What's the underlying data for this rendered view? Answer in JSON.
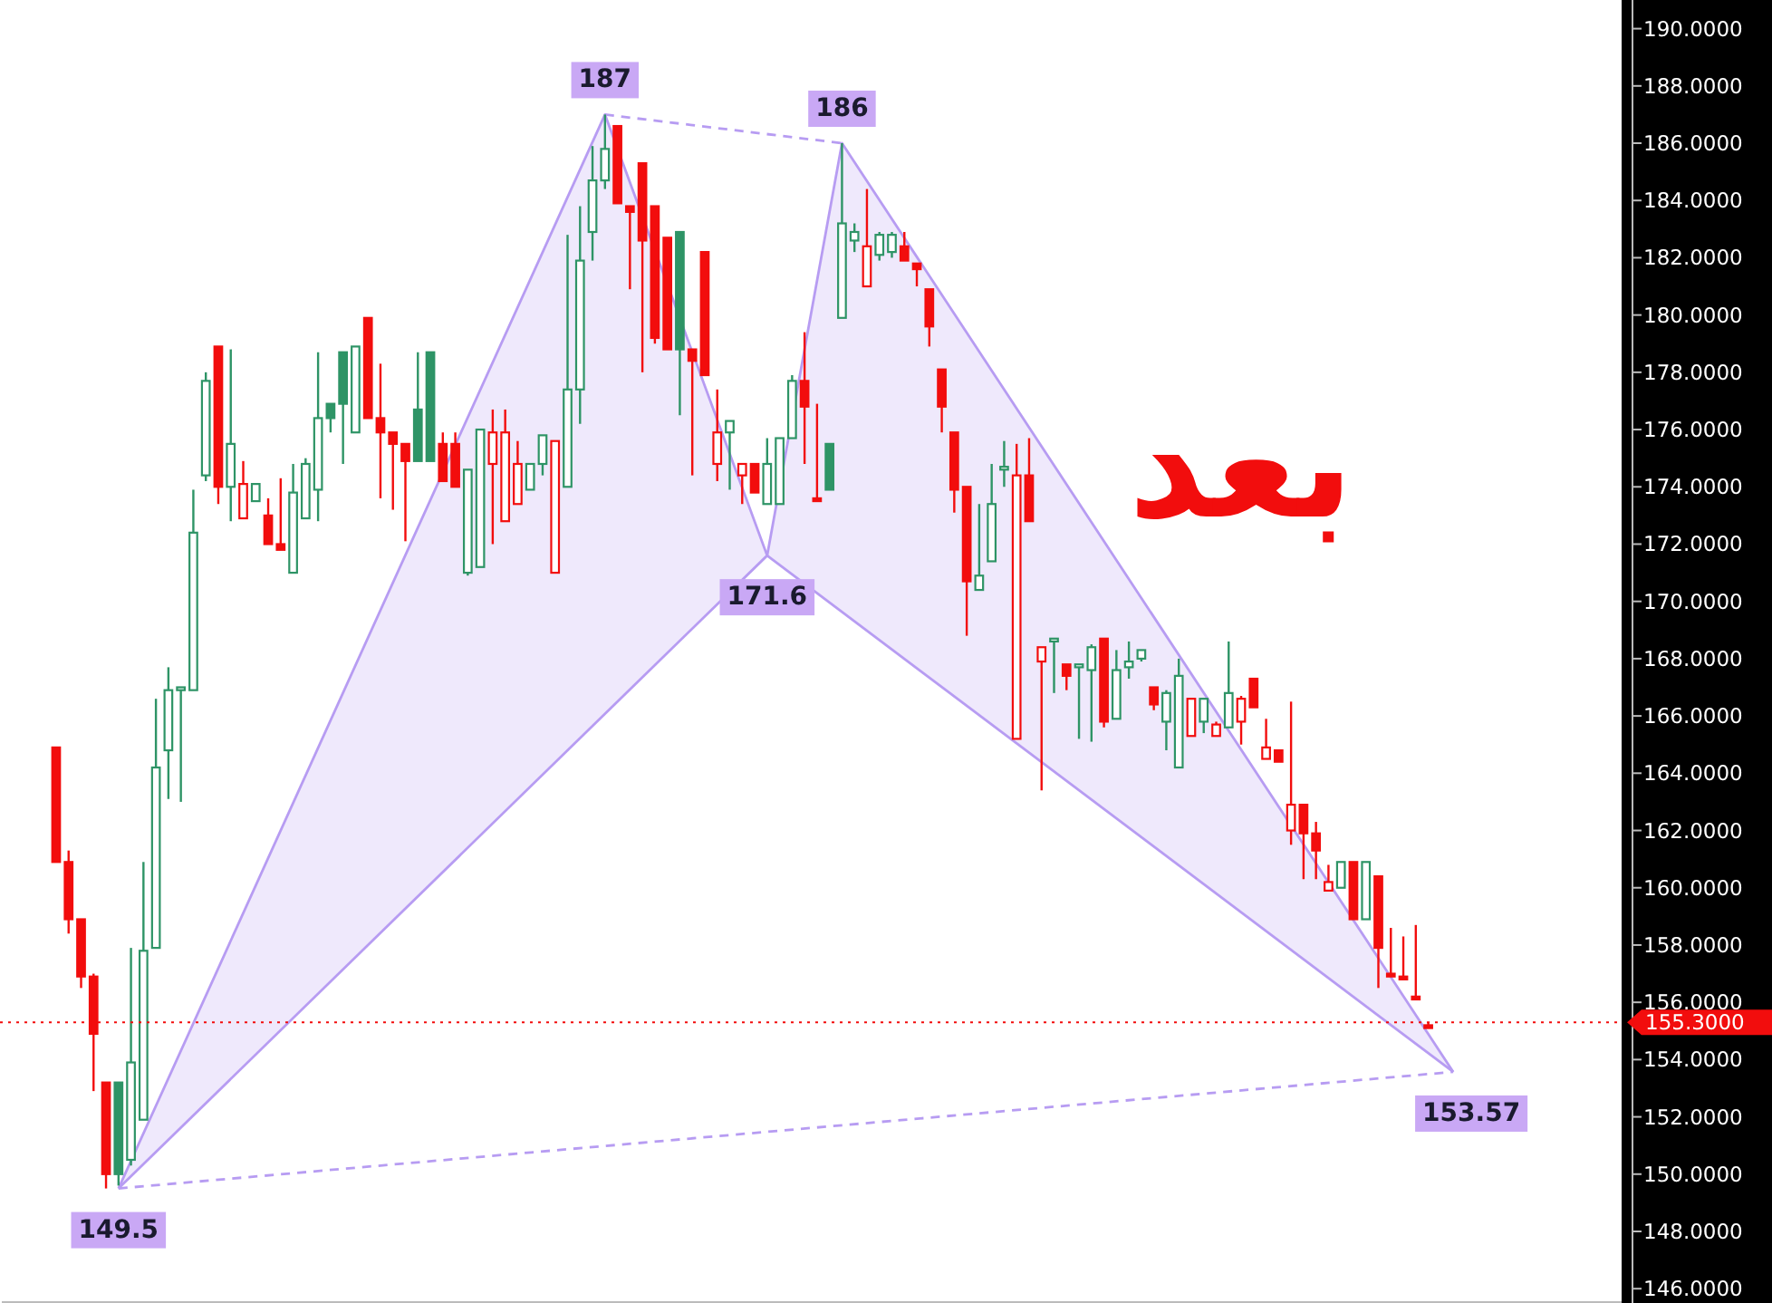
{
  "chart_data": {
    "type": "candlestick",
    "categories": [
      null,
      null,
      null,
      null,
      null,
      null,
      null,
      null,
      null,
      null,
      null,
      null,
      null,
      null,
      null,
      null,
      null,
      null,
      null,
      null,
      null,
      null,
      null,
      null,
      null,
      null,
      null,
      null,
      null,
      null,
      null,
      null,
      null,
      null,
      null,
      null,
      null,
      null,
      null,
      null,
      null,
      null,
      null,
      null,
      null,
      null,
      null,
      null,
      null,
      null,
      null,
      null,
      null,
      null,
      null,
      null,
      null,
      null,
      null,
      null,
      null,
      null,
      null,
      null,
      null,
      null,
      null,
      null,
      null,
      null,
      null,
      null,
      null,
      null,
      null,
      null,
      null,
      null,
      null,
      null,
      null,
      null,
      null,
      null,
      null,
      null,
      null,
      null,
      null,
      null,
      null,
      null,
      null,
      null,
      null,
      null,
      null,
      null,
      null,
      null,
      null,
      null,
      null,
      null,
      null,
      null,
      null,
      null,
      null,
      null,
      null,
      null,
      null,
      null,
      null,
      null,
      null,
      null,
      null,
      null,
      null,
      null,
      null,
      null,
      null,
      null,
      null,
      null,
      null,
      null
    ],
    "ohlc": [
      null,
      null,
      null,
      null,
      [
        164.9,
        164.9,
        160.9,
        160.9
      ],
      [
        160.9,
        161.3,
        158.4,
        158.9
      ],
      [
        158.9,
        158.9,
        156.5,
        156.9
      ],
      [
        156.9,
        157,
        152.9,
        154.9
      ],
      [
        153.2,
        153.2,
        149.5,
        150
      ],
      [
        153.2,
        153.2,
        149.6,
        150
      ],
      [
        150.5,
        157.9,
        150.3,
        153.9
      ],
      [
        151.9,
        160.9,
        151.9,
        157.8
      ],
      [
        157.9,
        166.6,
        157.9,
        164.2
      ],
      [
        164.8,
        167.7,
        163.1,
        166.9
      ],
      [
        166.9,
        167,
        163,
        167
      ],
      [
        166.9,
        173.9,
        166.9,
        172.4
      ],
      [
        174.4,
        178,
        174.2,
        177.7
      ],
      [
        178.9,
        178.9,
        173.4,
        174
      ],
      [
        174,
        178.8,
        172.8,
        175.5
      ],
      [
        172.9,
        174.9,
        172.9,
        174.1
      ],
      [
        173.5,
        174.1,
        173.5,
        174.1
      ],
      [
        173,
        173.6,
        172,
        172
      ],
      [
        172,
        174.3,
        171.8,
        171.8
      ],
      [
        171,
        174.8,
        171,
        173.8
      ],
      [
        172.9,
        175,
        172.9,
        174.8
      ],
      [
        173.9,
        178.7,
        172.8,
        176.4
      ],
      [
        176.9,
        176.9,
        175.9,
        176.4
      ],
      [
        178.7,
        178.7,
        174.8,
        176.9
      ],
      [
        175.9,
        178.9,
        175.9,
        178.9
      ],
      [
        179.9,
        179.9,
        176.4,
        176.4
      ],
      [
        176.4,
        178.3,
        173.6,
        175.9
      ],
      [
        175.9,
        175.9,
        173.2,
        175.5
      ],
      [
        175.5,
        175.5,
        172.1,
        174.9
      ],
      [
        176.7,
        178.7,
        174.9,
        174.9
      ],
      [
        178.7,
        178.7,
        174.9,
        174.9
      ],
      [
        175.5,
        175.9,
        174.2,
        174.2
      ],
      [
        175.5,
        175.9,
        174,
        174
      ],
      [
        171,
        174.6,
        170.9,
        174.6
      ],
      [
        171.2,
        176,
        171.2,
        176
      ],
      [
        174.8,
        176.7,
        172,
        175.9
      ],
      [
        172.8,
        176.7,
        172.8,
        175.9
      ],
      [
        173.4,
        175.6,
        173.4,
        174.8
      ],
      [
        173.9,
        174.8,
        173.9,
        174.8
      ],
      [
        174.8,
        175.8,
        174.4,
        175.8
      ],
      [
        171,
        175.6,
        171,
        175.6
      ],
      [
        174,
        182.8,
        174,
        177.4
      ],
      [
        177.4,
        183.8,
        176.2,
        181.9
      ],
      [
        182.9,
        185.9,
        181.9,
        184.7
      ],
      [
        184.7,
        187,
        184.4,
        185.8
      ],
      [
        186.6,
        186.6,
        183.9,
        183.9
      ],
      [
        183.8,
        183.8,
        180.9,
        183.6
      ],
      [
        185.3,
        185.3,
        178,
        182.6
      ],
      [
        183.8,
        183.8,
        179,
        179.2
      ],
      [
        182.7,
        182.7,
        178.8,
        178.8
      ],
      [
        182.9,
        182.9,
        176.5,
        178.8
      ],
      [
        178.8,
        178.8,
        174.4,
        178.4
      ],
      [
        182.2,
        182.2,
        177.9,
        177.9
      ],
      [
        174.8,
        177.4,
        174.2,
        175.9
      ],
      [
        175.9,
        176.3,
        173.9,
        176.3
      ],
      [
        174.4,
        174.8,
        173.4,
        174.8
      ],
      [
        174.8,
        174.8,
        173.8,
        173.8
      ],
      [
        173.4,
        175.7,
        173.4,
        174.8
      ],
      [
        173.4,
        175.7,
        173.4,
        175.7
      ],
      [
        175.7,
        177.9,
        175.7,
        177.7
      ],
      [
        177.7,
        179.4,
        174.8,
        176.8
      ],
      [
        173.6,
        176.9,
        173.5,
        173.5
      ],
      [
        175.5,
        175.5,
        173.9,
        173.9
      ],
      [
        179.9,
        186,
        179.9,
        183.2
      ],
      [
        182.6,
        183.2,
        182.2,
        182.9
      ],
      [
        181,
        184.4,
        181,
        182.4
      ],
      [
        182.1,
        182.9,
        181.9,
        182.8
      ],
      [
        182.2,
        182.9,
        182,
        182.8
      ],
      [
        182.4,
        182.9,
        181.9,
        181.9
      ],
      [
        181.8,
        181.8,
        181,
        181.6
      ],
      [
        180.9,
        180.9,
        178.9,
        179.6
      ],
      [
        178.1,
        178.1,
        175.9,
        176.8
      ],
      [
        175.9,
        175.9,
        173.1,
        173.9
      ],
      [
        174,
        174,
        168.8,
        170.7
      ],
      [
        170.4,
        173.4,
        170.4,
        170.9
      ],
      [
        171.4,
        174.8,
        171.4,
        173.4
      ],
      [
        174.6,
        175.6,
        174,
        174.7
      ],
      [
        165.2,
        175.5,
        165.2,
        174.4
      ],
      [
        174.4,
        175.7,
        172.8,
        172.8
      ],
      [
        167.9,
        168.4,
        163.4,
        168.4
      ],
      [
        168.6,
        168.7,
        166.8,
        168.7
      ],
      [
        167.8,
        167.8,
        166.9,
        167.4
      ],
      [
        167.7,
        167.8,
        165.2,
        167.8
      ],
      [
        167.6,
        168.5,
        165.1,
        168.4
      ],
      [
        168.7,
        168.7,
        165.6,
        165.8
      ],
      [
        165.9,
        168.3,
        165.9,
        167.6
      ],
      [
        167.7,
        168.6,
        167.3,
        167.9
      ],
      [
        168,
        168.3,
        167.9,
        168.3
      ],
      [
        167,
        167,
        166.2,
        166.4
      ],
      [
        165.8,
        166.9,
        164.8,
        166.8
      ],
      [
        164.2,
        168,
        164.2,
        167.4
      ],
      [
        165.3,
        166.6,
        165.3,
        166.6
      ],
      [
        165.8,
        166.6,
        165.4,
        166.6
      ],
      [
        165.3,
        165.8,
        165.3,
        165.7
      ],
      [
        165.6,
        168.6,
        165.6,
        166.8
      ],
      [
        165.8,
        166.7,
        165,
        166.6
      ],
      [
        167.3,
        167.3,
        166.3,
        166.3
      ],
      [
        164.5,
        165.9,
        164.5,
        164.9
      ],
      [
        164.8,
        164.8,
        164.4,
        164.4
      ],
      [
        162,
        166.5,
        161.5,
        162.9
      ],
      [
        162.9,
        162.9,
        160.3,
        161.9
      ],
      [
        161.9,
        162.3,
        160.3,
        161.3
      ],
      [
        159.9,
        160.8,
        159.9,
        160.2
      ],
      [
        160,
        160.9,
        160,
        160.9
      ],
      [
        160.9,
        160.9,
        158.9,
        158.9
      ],
      [
        158.9,
        160.9,
        158.9,
        160.9
      ],
      [
        160.4,
        160.4,
        156.5,
        157.9
      ],
      [
        157,
        158.6,
        156.9,
        156.9
      ],
      [
        156.9,
        158.3,
        156.8,
        156.8
      ],
      [
        156.2,
        158.7,
        156.1,
        156.1
      ],
      [
        155.2,
        155.3,
        155.1,
        155.1
      ],
      null,
      null,
      null,
      null,
      null,
      null,
      null,
      null,
      null,
      null,
      null,
      null,
      null,
      null,
      null
    ],
    "colors": [
      null,
      null,
      null,
      null,
      "#f20d0d",
      "#f20d0d",
      "#f20d0d",
      "#f20d0d",
      "#f20d0d",
      "#2e9466",
      "#2e9466",
      "#2e9466",
      "#2e9466",
      "#2e9466",
      "#2e9466",
      "#2e9466",
      "#2e9466",
      "#f20d0d",
      "#2e9466",
      "#f20d0d",
      "#2e9466",
      "#f20d0d",
      "#f20d0d",
      "#2e9466",
      "#2e9466",
      "#2e9466",
      "#2e9466",
      "#2e9466",
      "#2e9466",
      "#f20d0d",
      "#f20d0d",
      "#f20d0d",
      "#f20d0d",
      "#2e9466",
      "#2e9466",
      "#f20d0d",
      "#f20d0d",
      "#2e9466",
      "#2e9466",
      "#f20d0d",
      "#f20d0d",
      "#f20d0d",
      "#2e9466",
      "#2e9466",
      "#f20d0d",
      "#2e9466",
      "#2e9466",
      "#2e9466",
      "#2e9466",
      "#f20d0d",
      "#f20d0d",
      "#f20d0d",
      "#f20d0d",
      "#f20d0d",
      "#2e9466",
      "#f20d0d",
      "#f20d0d",
      "#f20d0d",
      "#2e9466",
      "#f20d0d",
      "#f20d0d",
      "#2e9466",
      "#2e9466",
      "#2e9466",
      "#f20d0d",
      "#f20d0d",
      "#2e9466",
      "#2e9466",
      "#2e9466",
      "#f20d0d",
      "#2e9466",
      "#2e9466",
      "#f20d0d",
      "#f20d0d",
      "#f20d0d",
      "#f20d0d",
      "#f20d0d",
      "#f20d0d",
      "#2e9466",
      "#2e9466",
      "#2e9466",
      "#f20d0d",
      "#f20d0d",
      "#f20d0d",
      "#2e9466",
      "#f20d0d",
      "#2e9466",
      "#2e9466",
      "#f20d0d",
      "#2e9466",
      "#2e9466",
      "#2e9466",
      "#f20d0d",
      "#2e9466",
      "#2e9466",
      "#f20d0d",
      "#2e9466",
      "#f20d0d",
      "#2e9466",
      "#f20d0d",
      "#f20d0d",
      "#f20d0d",
      "#f20d0d",
      "#f20d0d",
      "#f20d0d",
      "#f20d0d",
      "#f20d0d",
      "#2e9466",
      "#f20d0d",
      "#2e9466",
      "#f20d0d",
      "#f20d0d",
      "#f20d0d",
      "#f20d0d",
      "#f20d0d",
      null,
      null,
      null,
      null,
      null,
      null,
      null,
      null,
      null,
      null,
      null,
      null,
      null,
      null,
      null
    ],
    "series": [
      {
        "type": "line",
        "color": "#b79cf2",
        "values": [
          null,
          null,
          null,
          null,
          null,
          null,
          null,
          null,
          null,
          149.5,
          null,
          null,
          null,
          null,
          null,
          null,
          null,
          null,
          null,
          null,
          null,
          null,
          null,
          null,
          null,
          null,
          null,
          null,
          null,
          null,
          null,
          null,
          null,
          null,
          null,
          null,
          null,
          null,
          null,
          null,
          null,
          null,
          null,
          null,
          null,
          null,
          null,
          null,
          187,
          null,
          null,
          null,
          null,
          null,
          null,
          null,
          null,
          null,
          null,
          null,
          null,
          171.6,
          null,
          null,
          null,
          null,
          null,
          186,
          null,
          null,
          null,
          null,
          null,
          null,
          null,
          null,
          null,
          null,
          null,
          null,
          null,
          null,
          null,
          null,
          null,
          null,
          null,
          null,
          null,
          null,
          null,
          null,
          null,
          null,
          null,
          null,
          null,
          null,
          null,
          null,
          null,
          null,
          null,
          null,
          null,
          null,
          null,
          null,
          null,
          null,
          null,
          null,
          null,
          null,
          null,
          null,
          153.57,
          null,
          null,
          null,
          null,
          null,
          null,
          null,
          null,
          null,
          null,
          null,
          null,
          null
        ]
      },
      {
        "type": "line",
        "color": "#b79cf2",
        "values": [
          null,
          null,
          null,
          null,
          null,
          null,
          null,
          null,
          null,
          149.5,
          null,
          null,
          null,
          null,
          null,
          null,
          null,
          null,
          null,
          null,
          null,
          null,
          null,
          null,
          null,
          null,
          null,
          null,
          null,
          null,
          null,
          null,
          null,
          null,
          null,
          null,
          null,
          null,
          null,
          null,
          null,
          null,
          null,
          null,
          null,
          null,
          null,
          null,
          null,
          null,
          null,
          null,
          null,
          null,
          null,
          null,
          null,
          null,
          null,
          null,
          null,
          171.6,
          null,
          null,
          null,
          null,
          null,
          null,
          null,
          null,
          null,
          null,
          null,
          null,
          null,
          null,
          null,
          null,
          null,
          null,
          null,
          null,
          null,
          null,
          null,
          null,
          null,
          null,
          null,
          null,
          null,
          null,
          null,
          null,
          null,
          null,
          null,
          null,
          null,
          null,
          null,
          null,
          null,
          null,
          null,
          null,
          null,
          null,
          null,
          null,
          null,
          null,
          null,
          null,
          null,
          null,
          null,
          null,
          null,
          null,
          null,
          null,
          null,
          null,
          null,
          null,
          null,
          null,
          null,
          null
        ]
      },
      {
        "type": "line",
        "color": "#b79cf2",
        "values": [
          null,
          null,
          null,
          null,
          null,
          null,
          null,
          null,
          null,
          null,
          null,
          null,
          null,
          null,
          null,
          null,
          null,
          null,
          null,
          null,
          null,
          null,
          null,
          null,
          null,
          null,
          null,
          null,
          null,
          null,
          null,
          null,
          null,
          null,
          null,
          null,
          null,
          null,
          null,
          null,
          null,
          null,
          null,
          null,
          null,
          null,
          null,
          null,
          null,
          null,
          null,
          null,
          null,
          null,
          null,
          null,
          null,
          null,
          null,
          null,
          null,
          171.6,
          null,
          null,
          null,
          null,
          null,
          null,
          null,
          null,
          null,
          null,
          null,
          null,
          null,
          null,
          null,
          null,
          null,
          null,
          null,
          null,
          null,
          null,
          null,
          null,
          null,
          null,
          null,
          null,
          null,
          null,
          null,
          null,
          null,
          null,
          null,
          null,
          null,
          null,
          null,
          null,
          null,
          null,
          null,
          null,
          null,
          null,
          null,
          null,
          null,
          null,
          null,
          null,
          null,
          null,
          153.57,
          null,
          null,
          null,
          null,
          null,
          null,
          null,
          null,
          null,
          null,
          null,
          null,
          null
        ]
      },
      {
        "type": "line",
        "color": "#b79cf2",
        "line_style": "dashed",
        "values": [
          null,
          null,
          null,
          null,
          null,
          null,
          null,
          null,
          null,
          149.5,
          null,
          null,
          null,
          null,
          null,
          null,
          null,
          null,
          null,
          null,
          null,
          null,
          null,
          null,
          null,
          null,
          null,
          null,
          null,
          null,
          null,
          null,
          null,
          null,
          null,
          null,
          null,
          null,
          null,
          null,
          null,
          null,
          null,
          null,
          null,
          null,
          null,
          null,
          null,
          null,
          null,
          null,
          null,
          null,
          null,
          null,
          null,
          null,
          null,
          null,
          null,
          null,
          null,
          null,
          null,
          null,
          null,
          null,
          null,
          null,
          null,
          null,
          null,
          null,
          null,
          null,
          null,
          null,
          null,
          null,
          null,
          null,
          null,
          null,
          null,
          null,
          null,
          null,
          null,
          null,
          null,
          null,
          null,
          null,
          null,
          null,
          null,
          null,
          null,
          null,
          null,
          null,
          null,
          null,
          null,
          null,
          null,
          null,
          null,
          null,
          null,
          null,
          null,
          null,
          null,
          null,
          153.57,
          null,
          null,
          null,
          null,
          null,
          null,
          null,
          null,
          null,
          null,
          null,
          null,
          null
        ]
      },
      {
        "type": "line",
        "color": "#b79cf2",
        "line_style": "dashed",
        "values": [
          null,
          null,
          null,
          null,
          null,
          null,
          null,
          null,
          null,
          null,
          null,
          null,
          null,
          null,
          null,
          null,
          null,
          null,
          null,
          null,
          null,
          null,
          null,
          null,
          null,
          null,
          null,
          null,
          null,
          null,
          null,
          null,
          null,
          null,
          null,
          null,
          null,
          null,
          null,
          null,
          null,
          null,
          null,
          null,
          null,
          null,
          null,
          null,
          187,
          null,
          null,
          null,
          null,
          null,
          null,
          null,
          null,
          null,
          null,
          null,
          null,
          null,
          null,
          null,
          null,
          null,
          null,
          186,
          null,
          null,
          null,
          null,
          null,
          null,
          null,
          null,
          null,
          null,
          null,
          null,
          null,
          null,
          null,
          null,
          null,
          null,
          null,
          null,
          null,
          null,
          null,
          null,
          null,
          null,
          null,
          null,
          null,
          null,
          null,
          null,
          null,
          null,
          null,
          null,
          null,
          null,
          null,
          null,
          null,
          null,
          null,
          null,
          null,
          null,
          null,
          null,
          null,
          null,
          null,
          null,
          null,
          null,
          null,
          null,
          null,
          null,
          null,
          null,
          null,
          null
        ]
      }
    ],
    "ylim": [
      145.5,
      191
    ],
    "yticks": [
      {
        "value": 146,
        "label": "146.0000"
      },
      {
        "value": 148,
        "label": "148.0000"
      },
      {
        "value": 150,
        "label": "150.0000"
      },
      {
        "value": 152,
        "label": "152.0000"
      },
      {
        "value": 154,
        "label": "154.0000"
      },
      {
        "value": 156,
        "label": "156.0000"
      },
      {
        "value": 158,
        "label": "158.0000"
      },
      {
        "value": 160,
        "label": "160.0000"
      },
      {
        "value": 162,
        "label": "162.0000"
      },
      {
        "value": 164,
        "label": "164.0000"
      },
      {
        "value": 166,
        "label": "166.0000"
      },
      {
        "value": 168,
        "label": "168.0000"
      },
      {
        "value": 170,
        "label": "170.0000"
      },
      {
        "value": 172,
        "label": "172.0000"
      },
      {
        "value": 174,
        "label": "174.0000"
      },
      {
        "value": 176,
        "label": "176.0000"
      },
      {
        "value": 178,
        "label": "178.0000"
      },
      {
        "value": 180,
        "label": "180.0000"
      },
      {
        "value": 182,
        "label": "182.0000"
      },
      {
        "value": 184,
        "label": "184.0000"
      },
      {
        "value": 186,
        "label": "186.0000"
      },
      {
        "value": 188,
        "label": "188.0000"
      },
      {
        "value": 190,
        "label": "190.0000"
      }
    ],
    "tick_labels": "y",
    "grid": false,
    "ref_lines": [
      {
        "axis": "y",
        "value": 155.3,
        "label": "155.3000",
        "color": "#f20d0d",
        "line_style": "dotted"
      }
    ],
    "annotations": [
      "149.5",
      "187",
      "171.6",
      "186",
      "153.57",
      "بعد"
    ]
  }
}
